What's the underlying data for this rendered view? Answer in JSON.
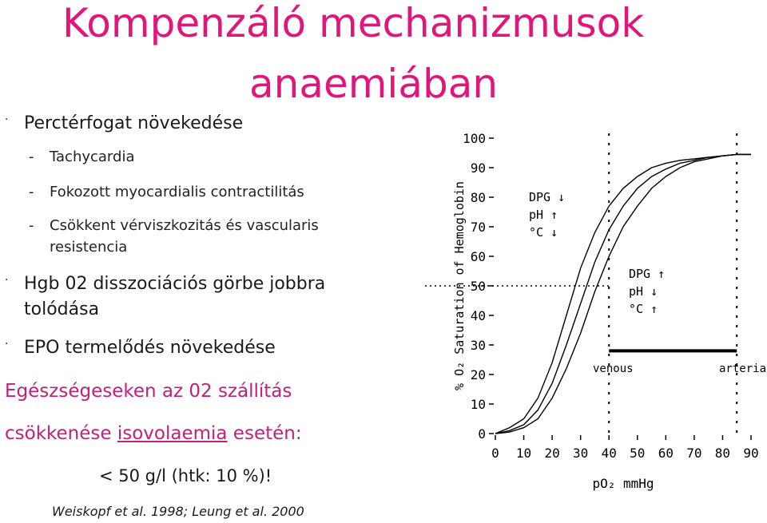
{
  "title": {
    "line1": "Kompenzáló mechanizmusok",
    "line2": "anaemiában"
  },
  "bullets": {
    "b1": "Perctérfogat növekedése",
    "b1_sub": [
      "Tachycardia",
      "Fokozott myocardialis  contractilitás",
      "Csökkent vérviszkozitás  és vascularis",
      "resistencia"
    ],
    "b2_line1": "Hgb 02 disszociációs görbe jobbra",
    "b2_line2": "tolódása",
    "b3": "EPO termelődés növekedése",
    "dot": "·",
    "dash": "-"
  },
  "summary": {
    "line1": "Egészségeseken az 02 szállítás",
    "line2a": "csökkenése ",
    "line2b": "isovolaemia",
    "line2c": " esetén:",
    "line3": "< 50 g/l (htk: 10 %)!"
  },
  "citation": "Weiskopf et al. 1998; Leung et al. 2000",
  "colors": {
    "title": "#e2157a",
    "pink_text": "#c2207a"
  },
  "chart_data": {
    "type": "line",
    "ylabel": "% O₂ Saturation of Hemoglobin",
    "xlabel": "pO₂ mmHg",
    "xlim": [
      0,
      90
    ],
    "ylim": [
      0,
      100
    ],
    "xticks": [
      0,
      10,
      20,
      30,
      40,
      50,
      60,
      70,
      80,
      90
    ],
    "yticks": [
      0,
      10,
      20,
      30,
      40,
      50,
      60,
      70,
      80,
      90,
      100
    ],
    "series": [
      {
        "x": [
          0,
          5,
          10,
          15,
          20,
          25,
          30,
          35,
          40,
          45,
          50,
          55,
          60,
          65,
          70,
          75,
          80,
          85,
          90
        ],
        "values": [
          0,
          2,
          5,
          12,
          24,
          40,
          56,
          68,
          77,
          83,
          87,
          90,
          91.5,
          92.5,
          93,
          93.5,
          94,
          94.5,
          94.5
        ]
      },
      {
        "x": [
          0,
          5,
          10,
          15,
          20,
          25,
          30,
          35,
          40,
          45,
          50,
          55,
          60,
          65,
          70,
          75,
          80,
          85,
          90
        ],
        "values": [
          0,
          1,
          3,
          8,
          17,
          30,
          44,
          58,
          69,
          77,
          83,
          87,
          89.5,
          91.5,
          92.5,
          93.5,
          94,
          94.5,
          94.5
        ]
      },
      {
        "x": [
          0,
          5,
          10,
          15,
          20,
          25,
          30,
          35,
          40,
          45,
          50,
          55,
          60,
          65,
          70,
          75,
          80,
          85,
          90
        ],
        "values": [
          0,
          0.5,
          2,
          5,
          12,
          22,
          34,
          48,
          60,
          70,
          77,
          83,
          87,
          90,
          92,
          93,
          94,
          94.5,
          94.5
        ]
      }
    ],
    "reference_lines": {
      "vertical_x": [
        40,
        85
      ],
      "horizontal_y": 50
    },
    "venous_arterial_bar": {
      "x_start": 40,
      "x_end": 85,
      "y": 28
    },
    "annotations": {
      "left_shift": [
        "DPG ↓",
        "pH ↑",
        "°C ↓"
      ],
      "right_shift": [
        "DPG ↑",
        "pH ↓",
        "°C ↑"
      ],
      "venous": "venous",
      "arterial": "arterial"
    }
  }
}
